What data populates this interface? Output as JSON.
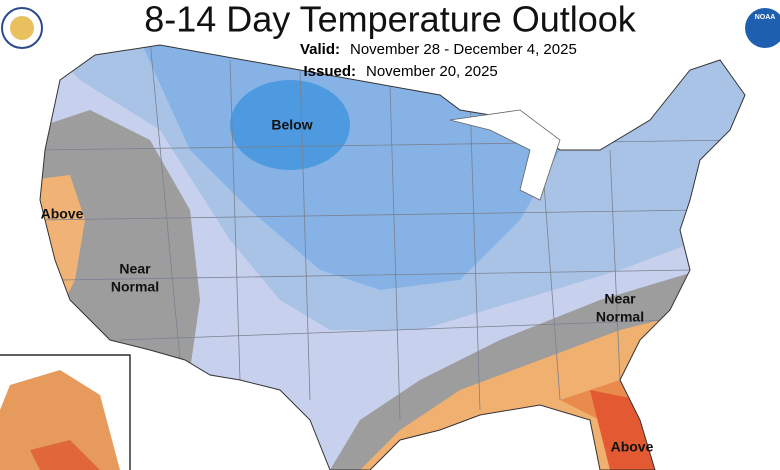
{
  "header": {
    "title": "8-14 Day Temperature Outlook",
    "valid_label": "Valid:",
    "valid_dates": "November 28 - December 4, 2025",
    "issued_label": "Issued:",
    "issued_date": "November 20, 2025",
    "logo_text": "NOAA"
  },
  "map": {
    "labels": [
      [
        "Below"
      ],
      [
        "Above"
      ],
      [
        "Near",
        "Normal"
      ],
      [
        "Near",
        "Normal"
      ],
      [
        "Above"
      ]
    ]
  }
}
